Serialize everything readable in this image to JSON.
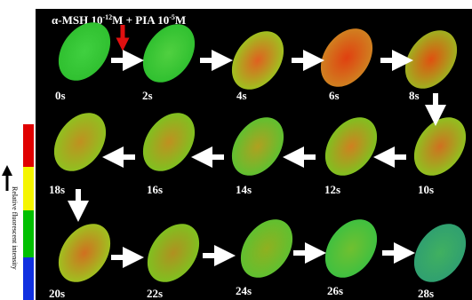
{
  "title": {
    "text1": "α-MSH 10",
    "sup1": "-12",
    "text2": "M + PIA 10",
    "sup2": "-5",
    "text3": "M"
  },
  "frames": [
    {
      "label": "0s"
    },
    {
      "label": "2s"
    },
    {
      "label": "4s"
    },
    {
      "label": "6s"
    },
    {
      "label": "8s"
    },
    {
      "label": "10s"
    },
    {
      "label": "12s"
    },
    {
      "label": "14s"
    },
    {
      "label": "16s"
    },
    {
      "label": "18s"
    },
    {
      "label": "20s"
    },
    {
      "label": "22s"
    },
    {
      "label": "24s"
    },
    {
      "label": "26s"
    },
    {
      "label": "28s"
    }
  ],
  "legend": {
    "label": "Relative fluorescent intensity"
  }
}
